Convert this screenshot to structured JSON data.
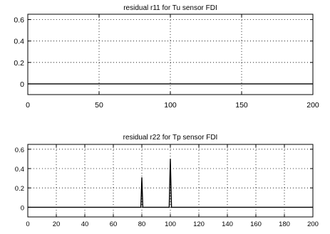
{
  "chart_data": [
    {
      "type": "line",
      "title": "residual r11 for  Tu sensor FDI",
      "xlabel": "",
      "ylabel": "",
      "xlim": [
        0,
        200
      ],
      "ylim": [
        -0.1,
        0.65
      ],
      "xticks": [
        0,
        50,
        100,
        150,
        200
      ],
      "yticks": [
        0,
        0.2,
        0.4,
        0.6
      ],
      "xtick_labels": [
        "0",
        "50",
        "100",
        "150",
        "200"
      ],
      "ytick_labels": [
        "0",
        "0.2",
        "0.4",
        "0.6"
      ],
      "grid": true,
      "series": [
        {
          "x": [
            0,
            200
          ],
          "y": [
            0,
            0
          ],
          "color": "#000000"
        }
      ]
    },
    {
      "type": "line",
      "title": "residual r22 for  Tp sensor FDI",
      "xlabel": "",
      "ylabel": "",
      "xlim": [
        0,
        200
      ],
      "ylim": [
        -0.1,
        0.65
      ],
      "xticks": [
        0,
        20,
        40,
        60,
        80,
        100,
        120,
        140,
        160,
        180,
        200
      ],
      "yticks": [
        0,
        0.2,
        0.4,
        0.6
      ],
      "xtick_labels": [
        "0",
        "20",
        "40",
        "60",
        "80",
        "100",
        "120",
        "140",
        "160",
        "180",
        "200"
      ],
      "ytick_labels": [
        "0",
        "0.2",
        "0.4",
        "0.6"
      ],
      "grid": true,
      "series": [
        {
          "x": [
            0,
            79.3,
            79.6,
            80,
            80.4,
            80.7,
            99.2,
            99.6,
            100,
            100.4,
            100.8,
            200
          ],
          "y": [
            0,
            0,
            0.13,
            0.31,
            0.12,
            0,
            0,
            0.25,
            0.5,
            0.24,
            0,
            0
          ],
          "color": "#000000"
        }
      ]
    }
  ]
}
